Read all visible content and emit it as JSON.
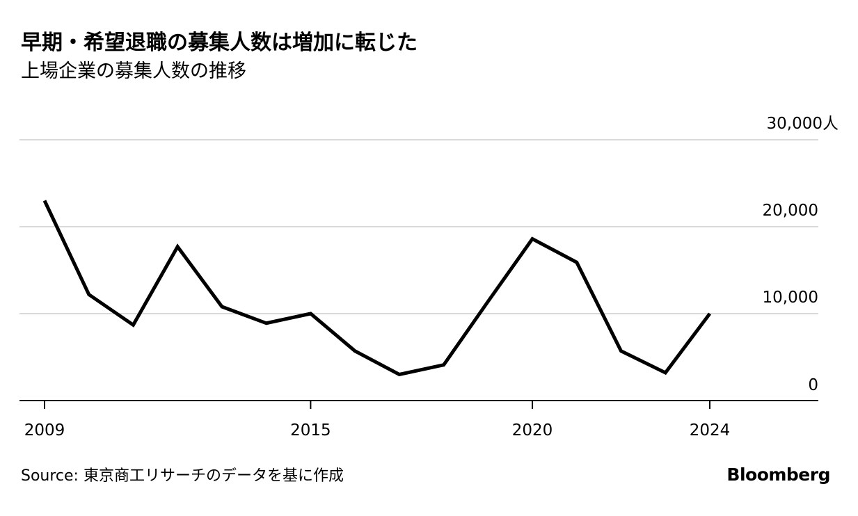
{
  "chart_data": {
    "type": "line",
    "title": "早期・希望退職の募集人数は増加に転じた",
    "subtitle": "上場企業の募集人数の推移",
    "x": [
      2009,
      2010,
      2011,
      2012,
      2013,
      2014,
      2015,
      2016,
      2017,
      2018,
      2019,
      2020,
      2021,
      2022,
      2023,
      2024
    ],
    "series": [
      {
        "values": [
          23000,
          12200,
          8700,
          17700,
          10800,
          8900,
          10000,
          5700,
          3000,
          4100,
          11400,
          18600,
          15900,
          5700,
          3200,
          10000
        ]
      }
    ],
    "x_ticks": [
      2009,
      2015,
      2020,
      2024
    ],
    "x_tick_labels": [
      "2009",
      "2015",
      "2020",
      "2024"
    ],
    "y_ticks": [
      0,
      10000,
      20000,
      30000
    ],
    "y_tick_labels": [
      "0",
      "10,000",
      "20,000",
      "30,000人"
    ],
    "xlim": [
      2009,
      2026.4
    ],
    "ylim": [
      0,
      30000
    ],
    "grid": true,
    "line_color": "#000000",
    "grid_color": "#d9d9d9"
  },
  "footer": {
    "source": "Source: 東京商工リサーチのデータを基に作成",
    "brand": "Bloomberg"
  }
}
